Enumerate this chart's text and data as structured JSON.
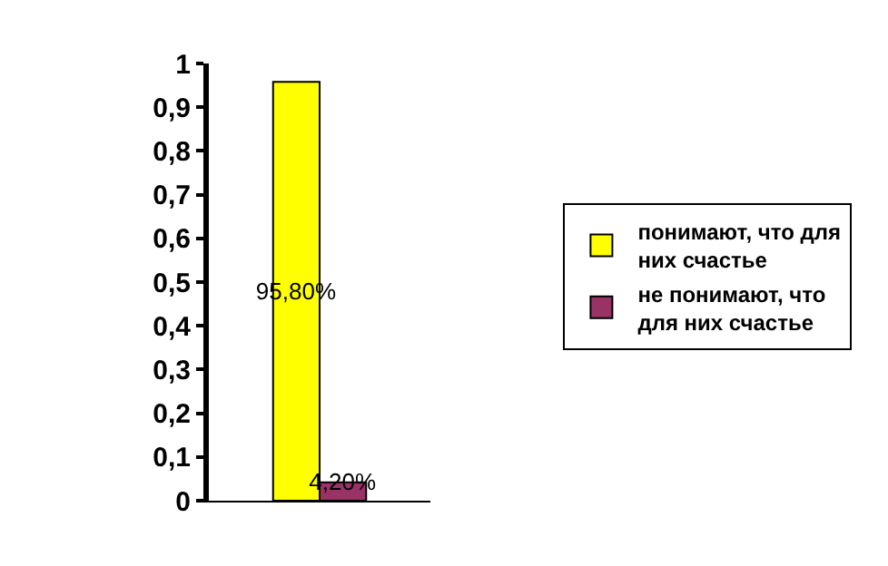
{
  "chart_data": {
    "type": "bar",
    "categories": [
      null
    ],
    "series": [
      {
        "name": "понимают, что для них счастье",
        "color": "#ffff00",
        "values": [
          0.958
        ],
        "value_labels": [
          "95,80%"
        ]
      },
      {
        "name": "не понимают, что для них счастье",
        "color": "#993366",
        "values": [
          0.042
        ],
        "value_labels": [
          "4,20%"
        ]
      }
    ],
    "ylim": [
      0,
      1
    ],
    "yticks": [
      0,
      {
        "value": 0.1,
        "label": "0,1"
      },
      {
        "value": 0.2,
        "label": "0,2"
      },
      {
        "value": 0.3,
        "label": "0,3"
      },
      {
        "value": 0.4,
        "label": "0,4"
      },
      {
        "value": 0.5,
        "label": "0,5"
      },
      {
        "value": 0.6,
        "label": "0,6"
      },
      {
        "value": 0.7,
        "label": "0,7"
      },
      {
        "value": 0.8,
        "label": "0,8"
      },
      {
        "value": 0.9,
        "label": "0,9"
      },
      1
    ],
    "grid": false,
    "legend": "right"
  }
}
